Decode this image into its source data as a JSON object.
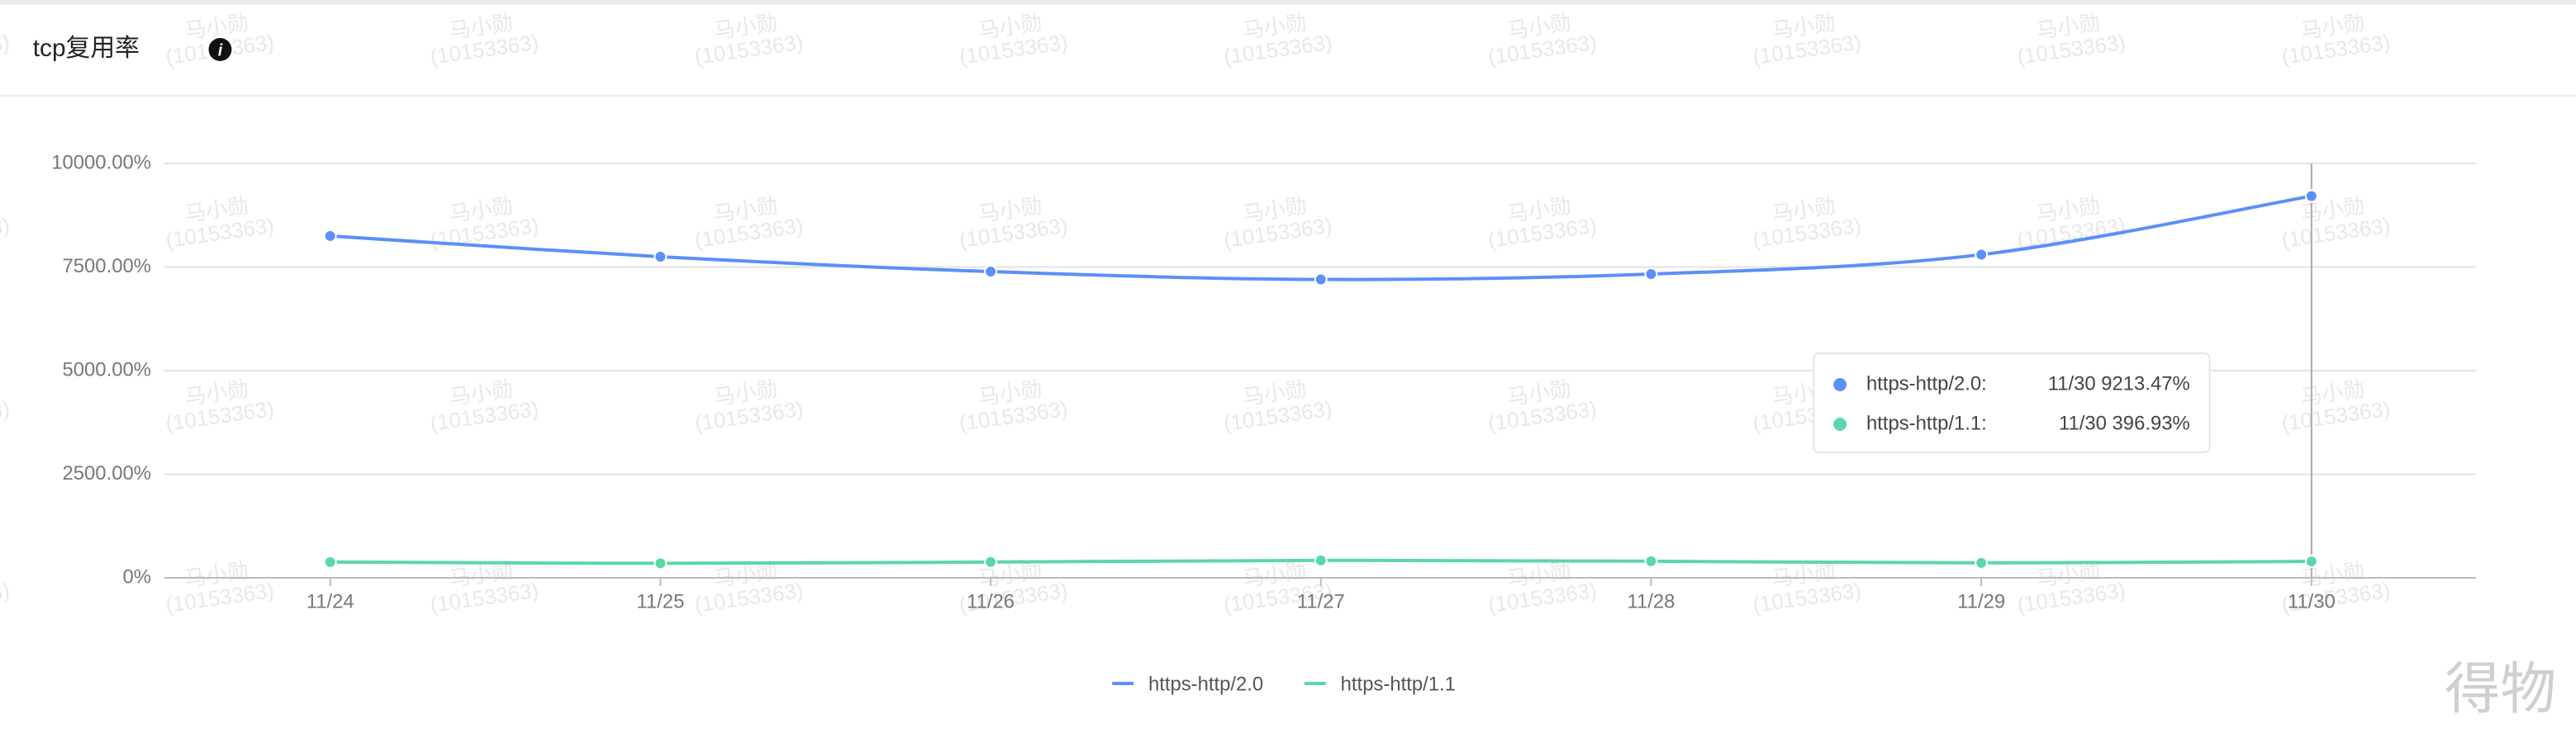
{
  "chart_data": {
    "type": "line",
    "title": "tcp复用率",
    "categories": [
      "11/24",
      "11/25",
      "11/26",
      "11/27",
      "11/28",
      "11/29",
      "11/30"
    ],
    "series": [
      {
        "name": "https-http/2.0",
        "color": "#5b8ff9",
        "values": [
          8250,
          7750,
          7390,
          7200,
          7330,
          7800,
          9213.47
        ]
      },
      {
        "name": "https-http/1.1",
        "color": "#5ad8a6",
        "values": [
          380,
          350,
          380,
          420,
          400,
          360,
          396.93
        ]
      }
    ],
    "ylim": [
      0,
      10000
    ],
    "yticks": [
      {
        "value": 0,
        "label": "0%"
      },
      {
        "value": 2500,
        "label": "2500.00%"
      },
      {
        "value": 5000,
        "label": "5000.00%"
      },
      {
        "value": 7500,
        "label": "7500.00%"
      },
      {
        "value": 10000,
        "label": "10000.00%"
      }
    ],
    "grid": true,
    "smooth": true,
    "legend": "bottom",
    "tooltip": {
      "rows": [
        {
          "name": "https-http/2.0:",
          "text": "11/30 9213.47%"
        },
        {
          "name": "https-http/1.1:",
          "text": "11/30 396.93%"
        }
      ]
    }
  },
  "watermark": {
    "line1": "马小勋",
    "line2": "(10153363)"
  },
  "brand": "得物"
}
